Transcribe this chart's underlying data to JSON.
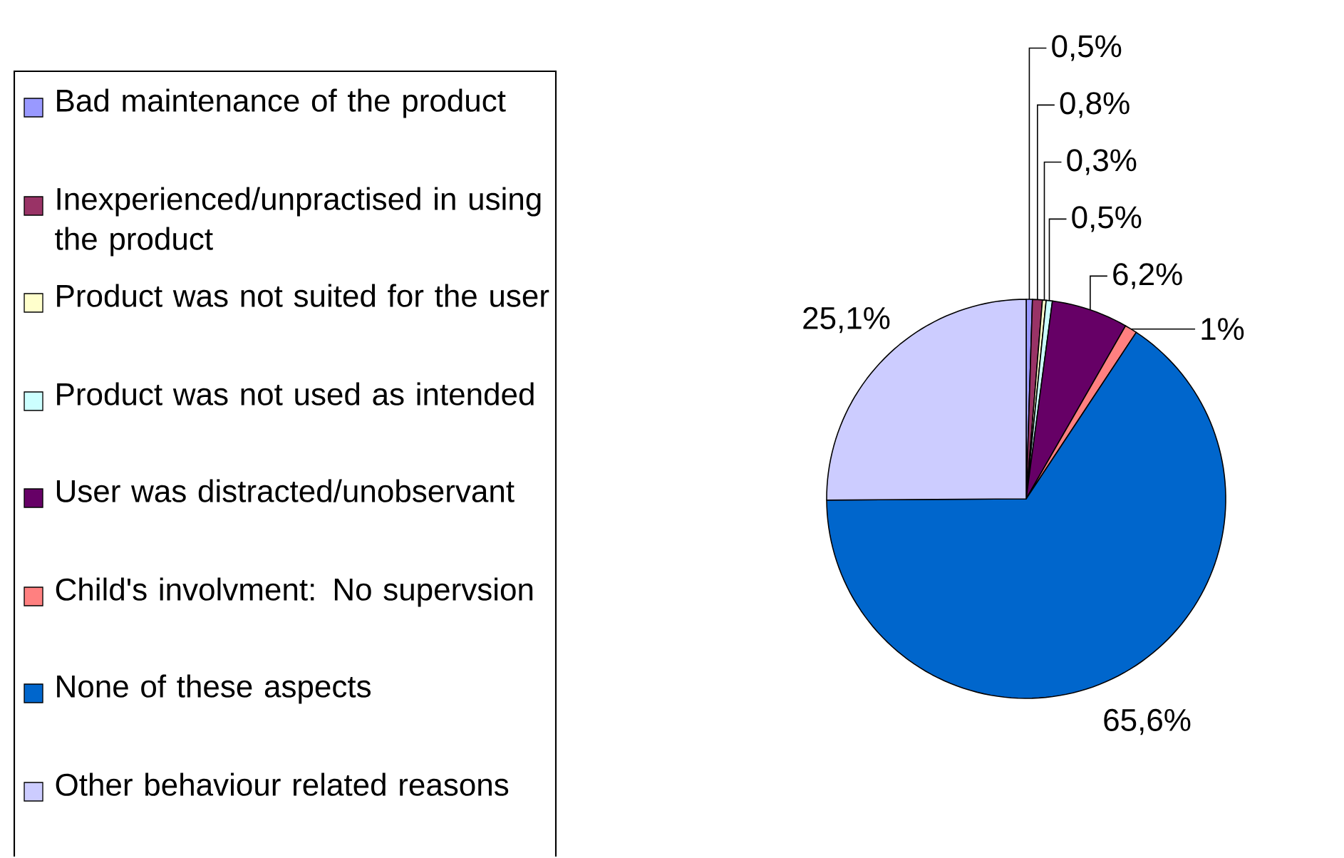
{
  "chart_data": {
    "type": "pie",
    "legend": "left",
    "categories": [
      "Bad maintenance of the product",
      "Inexperienced/unpractised in using the product",
      "Product was not suited for the user",
      "Product was not used as intended",
      "User was distracted/unobservant",
      "Child's involvment: No supervsion",
      "None of these aspects",
      "Other behaviour related reasons"
    ],
    "values": [
      0.5,
      0.8,
      0.3,
      0.5,
      6.2,
      1,
      65.6,
      25.1
    ],
    "value_labels": [
      "0,5%",
      "0,8%",
      "0,3%",
      "0,5%",
      "6,2%",
      "1%",
      "65,6%",
      "25,1%"
    ],
    "colors": [
      "#9999ff",
      "#993366",
      "#ffffcc",
      "#ccffff",
      "#660066",
      "#ff8080",
      "#0066cc",
      "#ccccff"
    ]
  }
}
